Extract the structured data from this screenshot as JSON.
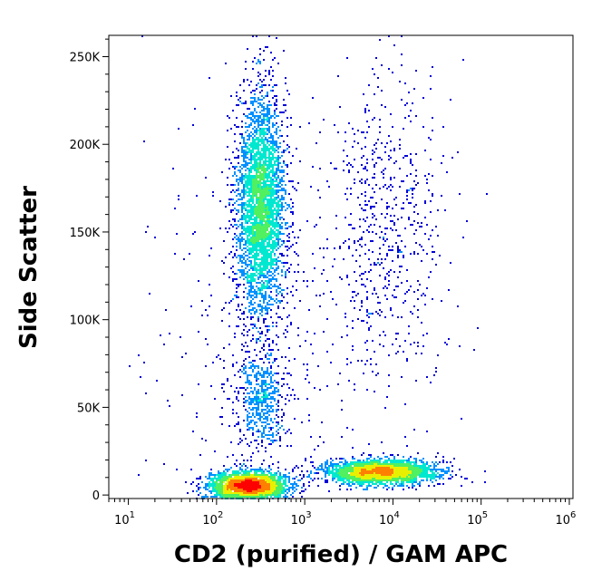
{
  "chart_data": {
    "type": "scatter",
    "rendering": "density-colored dot plot (flow cytometry)",
    "xlabel": "CD2 (purified) / GAM APC",
    "ylabel": "Side Scatter",
    "x_scale": "log",
    "xlim": [
      6,
      1100000
    ],
    "ylim": [
      -2000,
      262144
    ],
    "x_ticks": [
      {
        "value": 10,
        "base": "10",
        "exp": "1"
      },
      {
        "value": 100,
        "base": "10",
        "exp": "2"
      },
      {
        "value": 1000,
        "base": "10",
        "exp": "3"
      },
      {
        "value": 10000,
        "base": "10",
        "exp": "4"
      },
      {
        "value": 100000,
        "base": "10",
        "exp": "5"
      },
      {
        "value": 1000000,
        "base": "10",
        "exp": "6"
      }
    ],
    "y_ticks": [
      {
        "value": 0,
        "label": "0"
      },
      {
        "value": 50000,
        "label": "50K"
      },
      {
        "value": 100000,
        "label": "100K"
      },
      {
        "value": 150000,
        "label": "150K"
      },
      {
        "value": 200000,
        "label": "200K"
      },
      {
        "value": 250000,
        "label": "250K"
      }
    ],
    "density_colors": [
      "#0000d8",
      "#0090ff",
      "#00e8d0",
      "#50f060",
      "#e8f000",
      "#ff8000",
      "#ff0000"
    ],
    "populations": [
      {
        "id": "granulocytes-cd2-negative",
        "x_center": 320,
        "x_log_spread": 0.14,
        "y_center": 165000,
        "y_spread": 32000,
        "count": 3600
      },
      {
        "id": "monocytes-cd2-negative",
        "x_center": 330,
        "x_log_spread": 0.14,
        "y_center": 55000,
        "y_spread": 13000,
        "count": 550
      },
      {
        "id": "lymphocytes-cd2-negative",
        "x_center": 230,
        "x_log_spread": 0.22,
        "y_center": 5000,
        "y_spread": 4000,
        "count": 2800
      },
      {
        "id": "lymphocytes-cd2-positive",
        "x_center": 7000,
        "x_log_spread": 0.32,
        "y_center": 13000,
        "y_spread": 3500,
        "count": 2400
      },
      {
        "id": "scattered-cd2-positive",
        "x_center": 8000,
        "x_log_spread": 0.35,
        "y_center": 150000,
        "y_spread": 45000,
        "count": 650
      },
      {
        "id": "background",
        "x_center": 400,
        "x_log_spread": 0.7,
        "y_center": 80000,
        "y_spread": 60000,
        "count": 400
      }
    ]
  }
}
